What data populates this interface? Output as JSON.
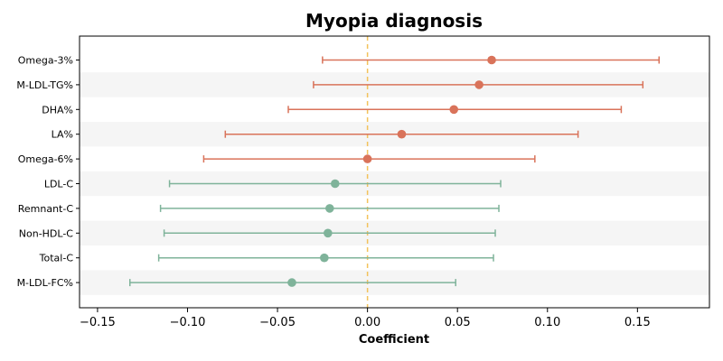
{
  "chart_data": {
    "type": "forest",
    "title": "Myopia diagnosis",
    "xlabel": "Coefficient",
    "ylabel": "",
    "xlim": [
      -0.16,
      0.19
    ],
    "xticks": [
      -0.15,
      -0.1,
      -0.05,
      0.0,
      0.05,
      0.1,
      0.15
    ],
    "xtick_labels": [
      "−0.15",
      "−0.10",
      "−0.05",
      "0.00",
      "0.05",
      "0.10",
      "0.15"
    ],
    "reference_line": 0,
    "grid": false,
    "colors": {
      "positive": "#d9735a",
      "negative": "#7fb39a",
      "reference_line": "#f3c25b",
      "band": "#f5f5f5"
    },
    "points": [
      {
        "label": "Omega-3%",
        "estimate": 0.069,
        "lower": -0.025,
        "upper": 0.162
      },
      {
        "label": "M-LDL-TG%",
        "estimate": 0.062,
        "lower": -0.03,
        "upper": 0.153
      },
      {
        "label": "DHA%",
        "estimate": 0.048,
        "lower": -0.044,
        "upper": 0.141
      },
      {
        "label": "LA%",
        "estimate": 0.019,
        "lower": -0.079,
        "upper": 0.117
      },
      {
        "label": "Omega-6%",
        "estimate": 0.0,
        "lower": -0.091,
        "upper": 0.093
      },
      {
        "label": "LDL-C",
        "estimate": -0.018,
        "lower": -0.11,
        "upper": 0.074
      },
      {
        "label": "Remnant-C",
        "estimate": -0.021,
        "lower": -0.115,
        "upper": 0.073
      },
      {
        "label": "Non-HDL-C",
        "estimate": -0.022,
        "lower": -0.113,
        "upper": 0.071
      },
      {
        "label": "Total-C",
        "estimate": -0.024,
        "lower": -0.116,
        "upper": 0.07
      },
      {
        "label": "M-LDL-FC%",
        "estimate": -0.042,
        "lower": -0.132,
        "upper": 0.049
      }
    ]
  }
}
